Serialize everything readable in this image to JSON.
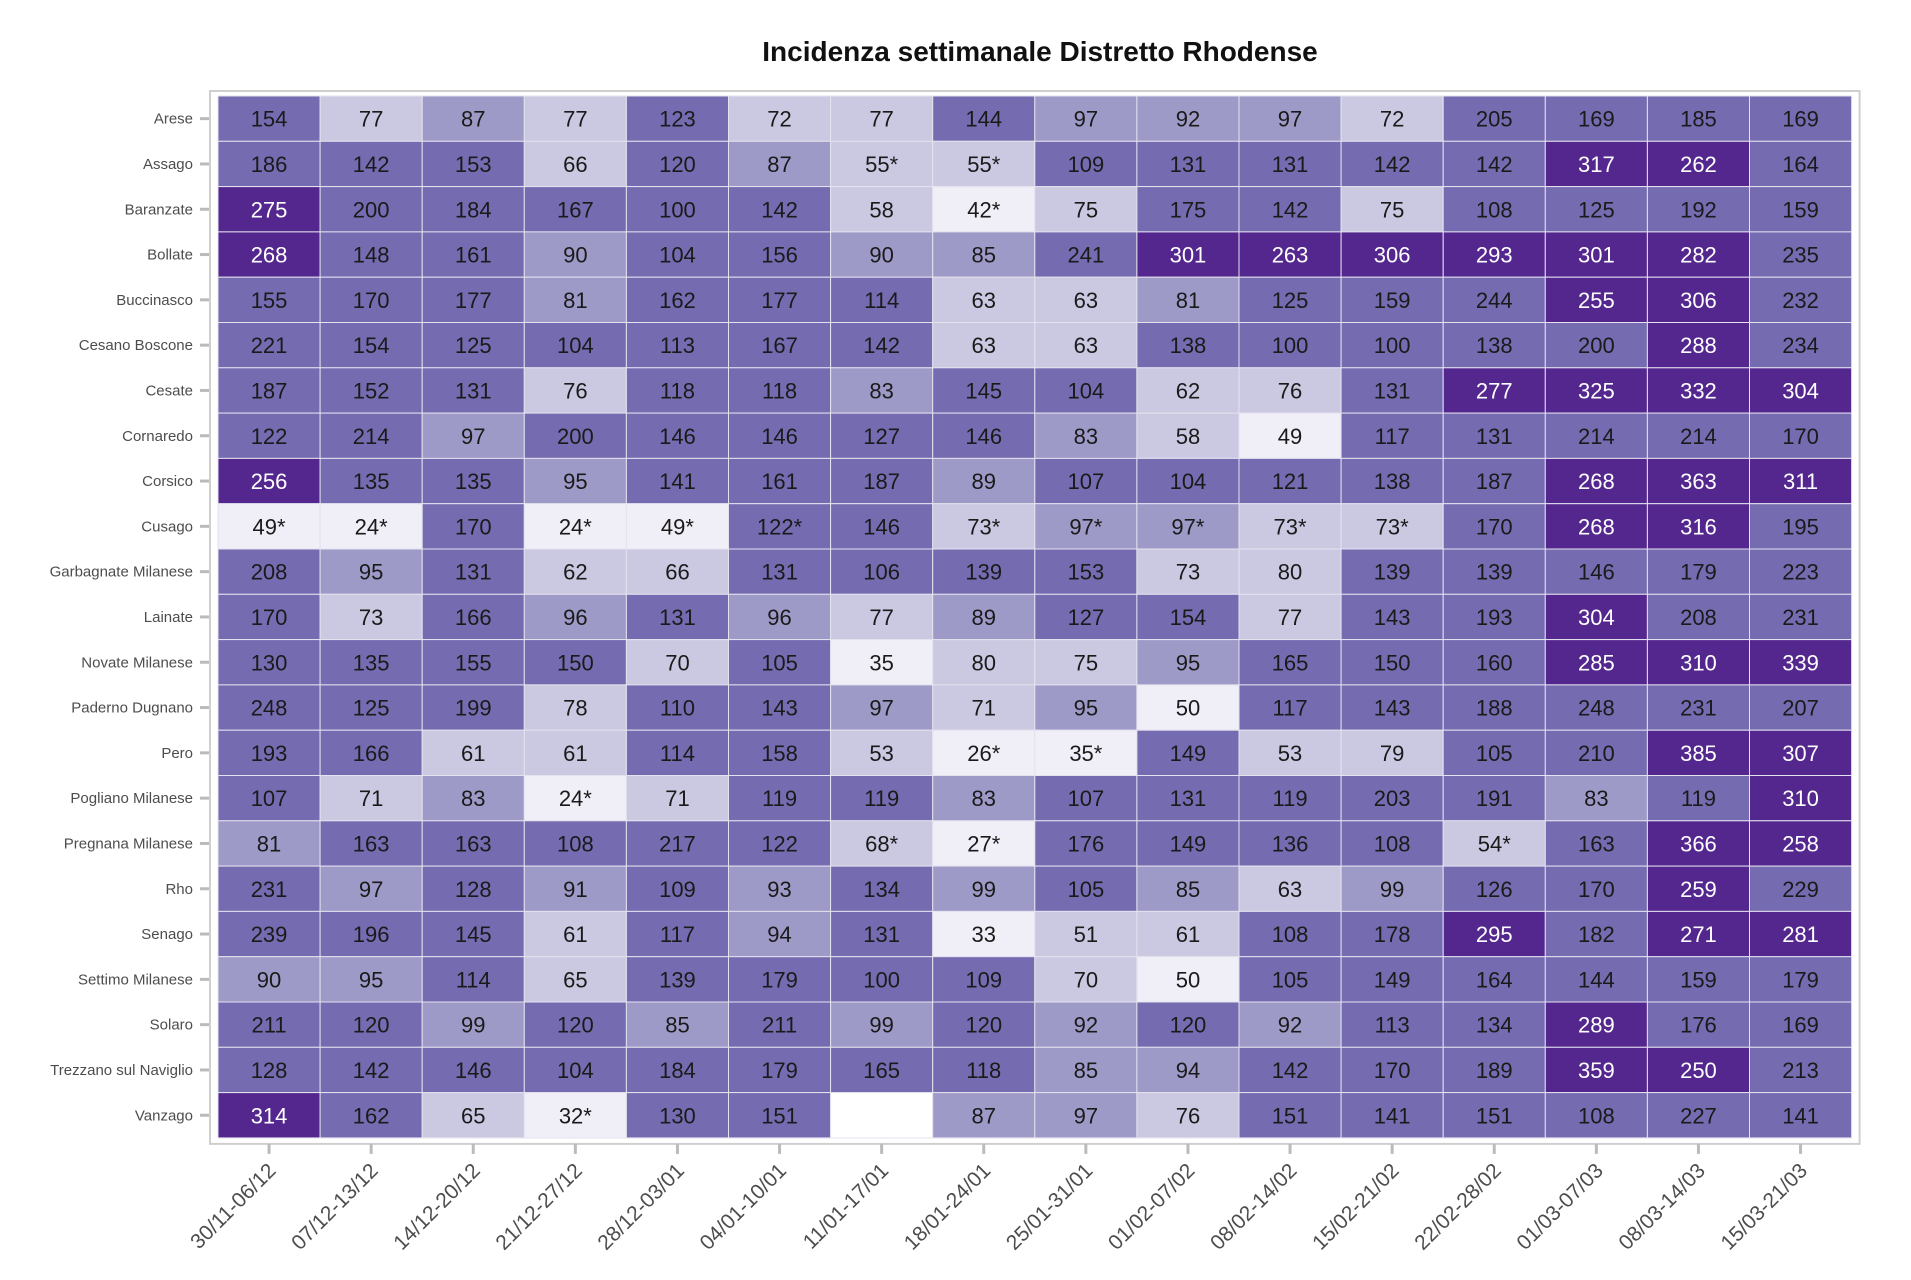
{
  "chart_data": {
    "type": "heatmap",
    "title": "Incidenza settimanale Distretto Rhodense",
    "xlabel": "",
    "ylabel": "",
    "columns": [
      "30/11-06/12",
      "07/12-13/12",
      "14/12-20/12",
      "21/12-27/12",
      "28/12-03/01",
      "04/01-10/01",
      "11/01-17/01",
      "18/01-24/01",
      "25/01-31/01",
      "01/02-07/02",
      "08/02-14/02",
      "15/02-21/02",
      "22/02-28/02",
      "01/03-07/03",
      "08/03-14/03",
      "15/03-21/03"
    ],
    "rows": [
      "Arese",
      "Assago",
      "Baranzate",
      "Bollate",
      "Buccinasco",
      "Cesano Boscone",
      "Cesate",
      "Cornaredo",
      "Corsico",
      "Cusago",
      "Garbagnate Milanese",
      "Lainate",
      "Novate Milanese",
      "Paderno Dugnano",
      "Pero",
      "Pogliano Milanese",
      "Pregnana Milanese",
      "Rho",
      "Senago",
      "Settimo Milanese",
      "Solaro",
      "Trezzano sul Naviglio",
      "Vanzago"
    ],
    "values": [
      [
        "154",
        "77",
        "87",
        "77",
        "123",
        "72",
        "77",
        "144",
        "97",
        "92",
        "97",
        "72",
        "205",
        "169",
        "185",
        "169"
      ],
      [
        "186",
        "142",
        "153",
        "66",
        "120",
        "87",
        "55*",
        "55*",
        "109",
        "131",
        "131",
        "142",
        "142",
        "317",
        "262",
        "164"
      ],
      [
        "275",
        "200",
        "184",
        "167",
        "100",
        "142",
        "58",
        "42*",
        "75",
        "175",
        "142",
        "75",
        "108",
        "125",
        "192",
        "159"
      ],
      [
        "268",
        "148",
        "161",
        "90",
        "104",
        "156",
        "90",
        "85",
        "241",
        "301",
        "263",
        "306",
        "293",
        "301",
        "282",
        "235"
      ],
      [
        "155",
        "170",
        "177",
        "81",
        "162",
        "177",
        "114",
        "63",
        "63",
        "81",
        "125",
        "159",
        "244",
        "255",
        "306",
        "232"
      ],
      [
        "221",
        "154",
        "125",
        "104",
        "113",
        "167",
        "142",
        "63",
        "63",
        "138",
        "100",
        "100",
        "138",
        "200",
        "288",
        "234"
      ],
      [
        "187",
        "152",
        "131",
        "76",
        "118",
        "118",
        "83",
        "145",
        "104",
        "62",
        "76",
        "131",
        "277",
        "325",
        "332",
        "304"
      ],
      [
        "122",
        "214",
        "97",
        "200",
        "146",
        "146",
        "127",
        "146",
        "83",
        "58",
        "49",
        "117",
        "131",
        "214",
        "214",
        "170"
      ],
      [
        "256",
        "135",
        "135",
        "95",
        "141",
        "161",
        "187",
        "89",
        "107",
        "104",
        "121",
        "138",
        "187",
        "268",
        "363",
        "311"
      ],
      [
        "49*",
        "24*",
        "170",
        "24*",
        "49*",
        "122*",
        "146",
        "73*",
        "97*",
        "97*",
        "73*",
        "73*",
        "170",
        "268",
        "316",
        "195"
      ],
      [
        "208",
        "95",
        "131",
        "62",
        "66",
        "131",
        "106",
        "139",
        "153",
        "73",
        "80",
        "139",
        "139",
        "146",
        "179",
        "223"
      ],
      [
        "170",
        "73",
        "166",
        "96",
        "131",
        "96",
        "77",
        "89",
        "127",
        "154",
        "77",
        "143",
        "193",
        "304",
        "208",
        "231"
      ],
      [
        "130",
        "135",
        "155",
        "150",
        "70",
        "105",
        "35",
        "80",
        "75",
        "95",
        "165",
        "150",
        "160",
        "285",
        "310",
        "339"
      ],
      [
        "248",
        "125",
        "199",
        "78",
        "110",
        "143",
        "97",
        "71",
        "95",
        "50",
        "117",
        "143",
        "188",
        "248",
        "231",
        "207"
      ],
      [
        "193",
        "166",
        "61",
        "61",
        "114",
        "158",
        "53",
        "26*",
        "35*",
        "149",
        "53",
        "79",
        "105",
        "210",
        "385",
        "307"
      ],
      [
        "107",
        "71",
        "83",
        "24*",
        "71",
        "119",
        "119",
        "83",
        "107",
        "131",
        "119",
        "203",
        "191",
        "83",
        "119",
        "310"
      ],
      [
        "81",
        "163",
        "163",
        "108",
        "217",
        "122",
        "68*",
        "27*",
        "176",
        "149",
        "136",
        "108",
        "54*",
        "163",
        "366",
        "258"
      ],
      [
        "231",
        "97",
        "128",
        "91",
        "109",
        "93",
        "134",
        "99",
        "105",
        "85",
        "63",
        "99",
        "126",
        "170",
        "259",
        "229"
      ],
      [
        "239",
        "196",
        "145",
        "61",
        "117",
        "94",
        "131",
        "33",
        "51",
        "61",
        "108",
        "178",
        "295",
        "182",
        "271",
        "281"
      ],
      [
        "90",
        "95",
        "114",
        "65",
        "139",
        "179",
        "100",
        "109",
        "70",
        "50",
        "105",
        "149",
        "164",
        "144",
        "159",
        "179"
      ],
      [
        "211",
        "120",
        "99",
        "120",
        "85",
        "211",
        "99",
        "120",
        "92",
        "120",
        "92",
        "113",
        "134",
        "289",
        "176",
        "169"
      ],
      [
        "128",
        "142",
        "146",
        "104",
        "184",
        "179",
        "165",
        "118",
        "85",
        "94",
        "142",
        "170",
        "189",
        "359",
        "250",
        "213"
      ],
      [
        "314",
        "162",
        "65",
        "32*",
        "130",
        "151",
        null,
        "87",
        "97",
        "76",
        "151",
        "141",
        "151",
        "108",
        "227",
        "141"
      ]
    ],
    "color_bins": [
      {
        "max": 50,
        "color": "#f0eef6"
      },
      {
        "max": 80,
        "color": "#cbc9e2"
      },
      {
        "max": 99,
        "color": "#9e9ac8"
      },
      {
        "max": 249,
        "color": "#756bb1"
      },
      {
        "max": 100000,
        "color": "#54278f"
      }
    ],
    "missing_color": "#ffffff",
    "legend": "none",
    "grid": false
  }
}
